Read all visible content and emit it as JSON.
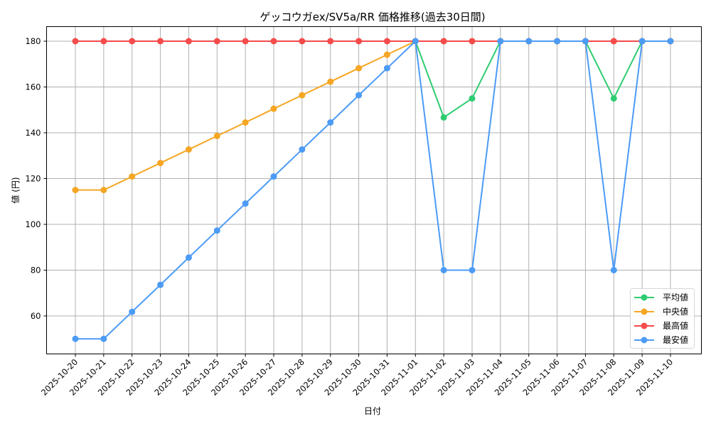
{
  "chart_data": {
    "type": "line",
    "title": "ゲッコウガex/SV5a/RR 価格推移(過去30日間)",
    "xlabel": "日付",
    "ylabel": "値 (円)",
    "ylim": [
      43,
      186
    ],
    "yticks": [
      60,
      80,
      100,
      120,
      140,
      160,
      180
    ],
    "grid": true,
    "legend_position": "lower right",
    "categories": [
      "2025-10-20",
      "2025-10-21",
      "2025-10-22",
      "2025-10-23",
      "2025-10-24",
      "2025-10-25",
      "2025-10-26",
      "2025-10-27",
      "2025-10-28",
      "2025-10-29",
      "2025-10-30",
      "2025-10-31",
      "2025-11-01",
      "2025-11-02",
      "2025-11-03",
      "2025-11-04",
      "2025-11-05",
      "2025-11-06",
      "2025-11-07",
      "2025-11-08",
      "2025-11-09",
      "2025-11-10"
    ],
    "series": [
      {
        "name": "平均値",
        "color": "#2ecc71",
        "values": [
          null,
          null,
          null,
          null,
          null,
          null,
          null,
          null,
          null,
          null,
          null,
          null,
          180,
          146.7,
          155,
          180,
          180,
          180,
          180,
          155,
          180,
          180
        ]
      },
      {
        "name": "中央値",
        "color": "#f5a623",
        "values": [
          115,
          115,
          120.9,
          126.8,
          132.7,
          138.6,
          144.5,
          150.5,
          156.4,
          162.3,
          168.2,
          174.1,
          180,
          180,
          180,
          180,
          180,
          180,
          180,
          180,
          180,
          180
        ]
      },
      {
        "name": "最高値",
        "color": "#f44b4b",
        "values": [
          180,
          180,
          180,
          180,
          180,
          180,
          180,
          180,
          180,
          180,
          180,
          180,
          180,
          180,
          180,
          180,
          180,
          180,
          180,
          180,
          180,
          180
        ]
      },
      {
        "name": "最安値",
        "color": "#4c9bf5",
        "values": [
          50,
          50,
          61.8,
          73.6,
          85.5,
          97.3,
          109.1,
          120.9,
          132.7,
          144.5,
          156.4,
          168.2,
          180,
          80,
          80,
          180,
          180,
          180,
          180,
          80,
          180,
          180
        ]
      }
    ]
  }
}
